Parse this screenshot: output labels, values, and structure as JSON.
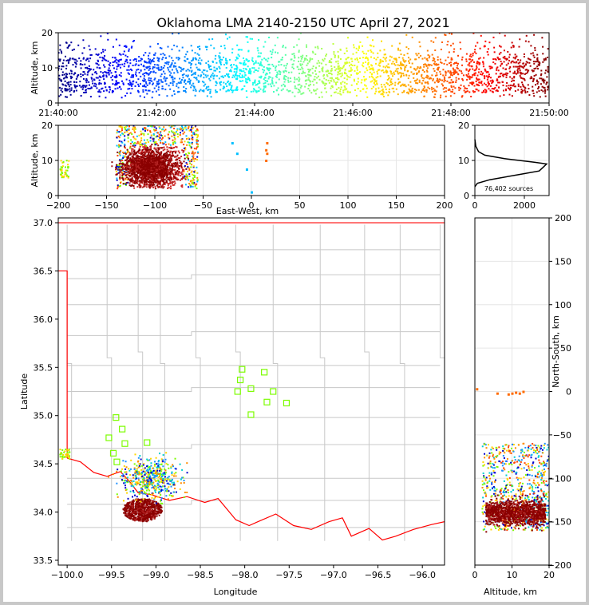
{
  "chart_data": [
    {
      "type": "scatter",
      "panel": "time-altitude",
      "title": "Oklahoma LMA 2140-2150 UTC April 27, 2021",
      "xlabel": "",
      "ylabel": "Altitude, km",
      "x_tick_labels": [
        "21:40:00",
        "21:42:00",
        "21:44:00",
        "21:46:00",
        "21:48:00",
        "21:50:00"
      ],
      "y_ticks": [
        0,
        10,
        20
      ],
      "xlim": [
        "21:40:00",
        "21:50:00"
      ],
      "ylim": [
        0,
        20
      ],
      "colormap": "jet by time",
      "band": {
        "altitude_core_km": [
          3,
          13
        ],
        "sparse_top_km": 20
      }
    },
    {
      "type": "scatter",
      "panel": "east-west-altitude",
      "xlabel": "East-West, km",
      "ylabel": "Altitude, km",
      "xlim": [
        -200,
        200
      ],
      "ylim": [
        0,
        20
      ],
      "x_ticks": [
        -200,
        -150,
        -100,
        -50,
        0,
        50,
        100,
        150,
        200
      ],
      "y_ticks": [
        0,
        10,
        20
      ],
      "clusters": [
        {
          "name": "main",
          "x_range": [
            -140,
            -55
          ],
          "y_range": [
            2,
            20
          ],
          "core_x": [
            -130,
            -80
          ],
          "color": "#8b0000"
        },
        {
          "name": "west-edge",
          "x_range": [
            -200,
            -190
          ],
          "y_range": [
            5,
            10
          ]
        },
        {
          "name": "east-small",
          "points": [
            [
              15,
              10
            ],
            [
              16,
              12
            ],
            [
              15,
              13
            ],
            [
              16,
              15
            ],
            [
              0,
              1
            ],
            [
              -20,
              15
            ],
            [
              -15,
              12
            ],
            [
              -5,
              7.5
            ]
          ]
        }
      ]
    },
    {
      "type": "line",
      "panel": "altitude-histogram",
      "xlim": [
        0,
        3000
      ],
      "ylim": [
        0,
        20
      ],
      "x_ticks": [
        0,
        2000
      ],
      "y_ticks": [
        0,
        10,
        20
      ],
      "annotation": "76,402 sources",
      "profile": [
        [
          0,
          2.5
        ],
        [
          100,
          3.5
        ],
        [
          600,
          4.5
        ],
        [
          1800,
          6
        ],
        [
          2600,
          7
        ],
        [
          2750,
          8
        ],
        [
          2900,
          9
        ],
        [
          2400,
          9.5
        ],
        [
          1200,
          10.5
        ],
        [
          400,
          11.5
        ],
        [
          150,
          12.5
        ],
        [
          40,
          14
        ],
        [
          0,
          16
        ]
      ]
    },
    {
      "type": "scatter",
      "panel": "plan-view-map",
      "xlabel": "Longitude",
      "ylabel": "Latitude",
      "xlim": [
        -100.1,
        -95.75
      ],
      "ylim": [
        33.45,
        37.05
      ],
      "x_ticks": [
        -100.0,
        -99.5,
        -99.0,
        -98.5,
        -98.0,
        -97.5,
        -97.0,
        -96.5,
        -96.0
      ],
      "y_ticks": [
        33.5,
        34.0,
        34.5,
        35.0,
        35.5,
        36.0,
        36.5,
        37.0
      ],
      "x_tick_labels": [
        "−100.0",
        "−99.5",
        "−99.0",
        "−98.5",
        "−98.0",
        "−97.5",
        "−97.0",
        "−96.5",
        "−96.0"
      ],
      "stations": [
        [
          -98.03,
          35.48
        ],
        [
          -98.05,
          35.37
        ],
        [
          -98.08,
          35.25
        ],
        [
          -97.93,
          35.28
        ],
        [
          -97.78,
          35.45
        ],
        [
          -97.68,
          35.25
        ],
        [
          -97.53,
          35.13
        ],
        [
          -97.75,
          35.14
        ],
        [
          -97.93,
          35.01
        ],
        [
          -99.45,
          34.98
        ],
        [
          -99.38,
          34.86
        ],
        [
          -99.53,
          34.77
        ],
        [
          -99.35,
          34.71
        ],
        [
          -99.1,
          34.72
        ],
        [
          -99.48,
          34.61
        ],
        [
          -99.44,
          34.52
        ]
      ],
      "station_color": "#7cfc00",
      "state_border_color": "#ff0000",
      "county_line_color": "#c8c8c8"
    },
    {
      "type": "scatter",
      "panel": "altitude-north-south",
      "xlabel": "Altitude, km",
      "ylabel": "North-South, km",
      "xlim": [
        0,
        20
      ],
      "ylim": [
        -200,
        200
      ],
      "x_ticks": [
        0,
        10,
        20
      ],
      "y_ticks": [
        -200,
        -150,
        -100,
        -50,
        0,
        50,
        100,
        150,
        200
      ]
    }
  ]
}
